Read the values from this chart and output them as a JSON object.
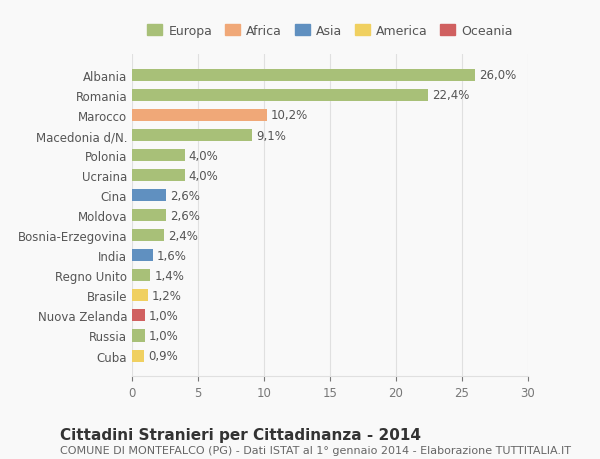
{
  "categories": [
    "Cuba",
    "Russia",
    "Nuova Zelanda",
    "Brasile",
    "Regno Unito",
    "India",
    "Bosnia-Erzegovina",
    "Moldova",
    "Cina",
    "Ucraina",
    "Polonia",
    "Macedonia d/N.",
    "Marocco",
    "Romania",
    "Albania"
  ],
  "values": [
    0.9,
    1.0,
    1.0,
    1.2,
    1.4,
    1.6,
    2.4,
    2.6,
    2.6,
    4.0,
    4.0,
    9.1,
    10.2,
    22.4,
    26.0
  ],
  "labels": [
    "0,9%",
    "1,0%",
    "1,0%",
    "1,2%",
    "1,4%",
    "1,6%",
    "2,4%",
    "2,6%",
    "2,6%",
    "4,0%",
    "4,0%",
    "9,1%",
    "10,2%",
    "22,4%",
    "26,0%"
  ],
  "continents": [
    "America",
    "Europa",
    "Oceania",
    "America",
    "Europa",
    "Asia",
    "Europa",
    "Europa",
    "Asia",
    "Europa",
    "Europa",
    "Europa",
    "Africa",
    "Europa",
    "Europa"
  ],
  "continent_colors": {
    "Europa": "#a8c078",
    "Africa": "#f0a878",
    "Asia": "#6090c0",
    "America": "#f0d060",
    "Oceania": "#d06060"
  },
  "legend_order": [
    "Europa",
    "Africa",
    "Asia",
    "America",
    "Oceania"
  ],
  "legend_colors": {
    "Europa": "#a8c078",
    "Africa": "#f0a878",
    "Asia": "#6090c0",
    "America": "#f0d060",
    "Oceania": "#d06060"
  },
  "xlim": [
    0,
    30
  ],
  "xticks": [
    0,
    5,
    10,
    15,
    20,
    25,
    30
  ],
  "title": "Cittadini Stranieri per Cittadinanza - 2014",
  "subtitle": "COMUNE DI MONTEFALCO (PG) - Dati ISTAT al 1° gennaio 2014 - Elaborazione TUTTITALIA.IT",
  "background_color": "#f9f9f9",
  "grid_color": "#e0e0e0",
  "bar_height": 0.6,
  "label_fontsize": 8.5,
  "tick_fontsize": 8.5,
  "title_fontsize": 11,
  "subtitle_fontsize": 8
}
